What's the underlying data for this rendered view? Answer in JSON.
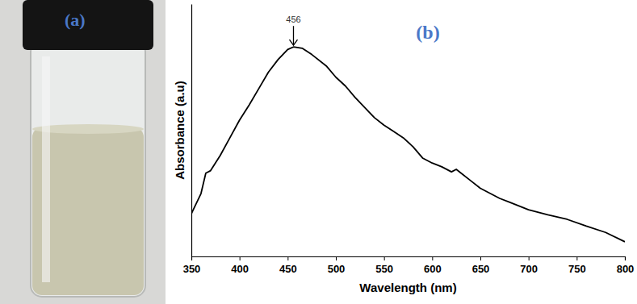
{
  "photo": {
    "label": "(a)"
  },
  "chart_data": {
    "type": "line",
    "title": "(b)",
    "x_label": "Wavelength (nm)",
    "y_label": "Absorbance (a.u)",
    "x": [
      350,
      360,
      365,
      370,
      380,
      390,
      400,
      410,
      420,
      430,
      440,
      450,
      456,
      465,
      475,
      490,
      500,
      510,
      520,
      530,
      540,
      550,
      560,
      570,
      580,
      590,
      600,
      610,
      620,
      625,
      630,
      640,
      650,
      660,
      670,
      680,
      690,
      700,
      720,
      740,
      760,
      780,
      800
    ],
    "values": [
      0.169,
      0.249,
      0.33,
      0.34,
      0.4,
      0.47,
      0.54,
      0.6,
      0.665,
      0.73,
      0.78,
      0.82,
      0.83,
      0.825,
      0.8,
      0.755,
      0.71,
      0.675,
      0.63,
      0.59,
      0.55,
      0.52,
      0.495,
      0.47,
      0.435,
      0.39,
      0.37,
      0.355,
      0.335,
      0.345,
      0.33,
      0.3,
      0.27,
      0.25,
      0.23,
      0.215,
      0.2,
      0.185,
      0.165,
      0.147,
      0.12,
      0.095,
      0.058
    ],
    "color": "#000000",
    "xlim": [
      350,
      800
    ],
    "xticks": [
      350,
      400,
      450,
      500,
      550,
      600,
      650,
      700,
      750,
      800
    ],
    "ylim": [
      0,
      1
    ],
    "yticks": [],
    "tick_labels": "x",
    "annotations": [
      {
        "text": "456",
        "x": 456,
        "y": 0.83
      }
    ]
  }
}
